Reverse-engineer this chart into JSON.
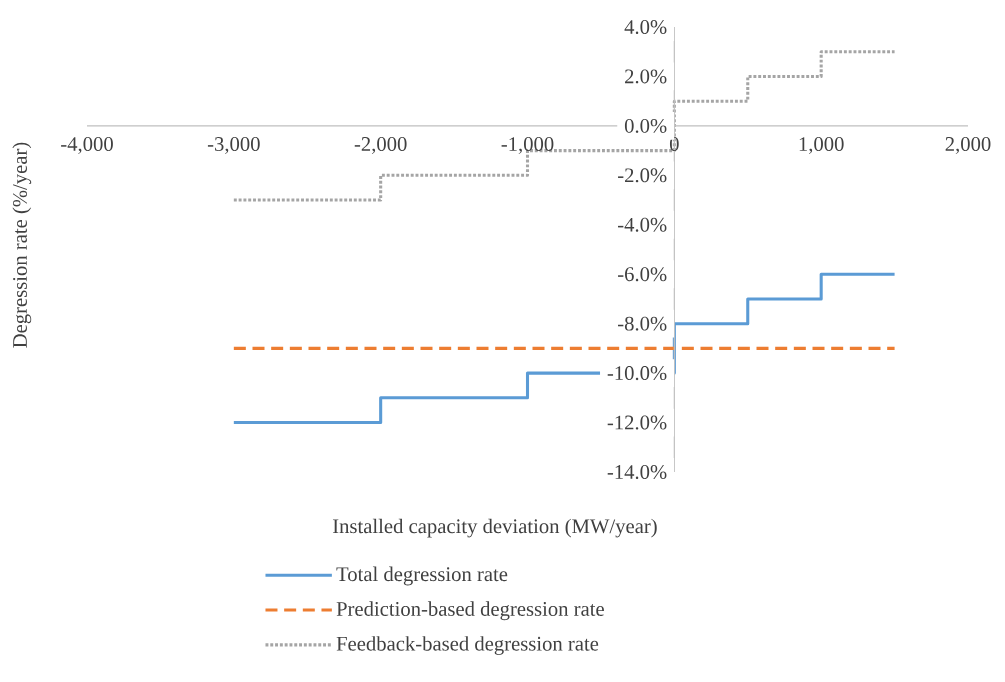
{
  "chart_data": {
    "type": "step",
    "xlabel": "Installed capacity deviation (MW/year)",
    "ylabel": "Degression rate (%/year)",
    "xlim": [
      -4000,
      2000
    ],
    "ylim": [
      -14,
      4
    ],
    "xticks": [
      {
        "value": -4000,
        "label": "-4,000"
      },
      {
        "value": -3000,
        "label": "-3,000"
      },
      {
        "value": -2000,
        "label": "-2,000"
      },
      {
        "value": -1000,
        "label": "-1,000"
      },
      {
        "value": 0,
        "label": "0"
      },
      {
        "value": 1000,
        "label": "1,000"
      },
      {
        "value": 2000,
        "label": "2,000"
      }
    ],
    "yticks": [
      {
        "value": -14,
        "label": "-14.0%"
      },
      {
        "value": -12,
        "label": "-12.0%"
      },
      {
        "value": -10,
        "label": "-10.0%"
      },
      {
        "value": -8,
        "label": "-8.0%"
      },
      {
        "value": -6,
        "label": "-6.0%"
      },
      {
        "value": -4,
        "label": "-4.0%"
      },
      {
        "value": -2,
        "label": "-2.0%"
      },
      {
        "value": 0,
        "label": "0.0%"
      },
      {
        "value": 2,
        "label": "2.0%"
      },
      {
        "value": 4,
        "label": "4.0%"
      }
    ],
    "legend": "bottom",
    "series": [
      {
        "name": "Total degression rate",
        "color": "#5b9bd5",
        "line_style": "solid",
        "x": [
          -3000,
          -2000,
          -1000,
          0,
          500,
          1000,
          1500
        ],
        "values": [
          -12,
          -11,
          -10,
          -8,
          -7,
          -6,
          -6
        ]
      },
      {
        "name": "Prediction-based degression rate",
        "type": "line",
        "color": "#ed7d31",
        "line_style": "dashed",
        "x": [
          -3000,
          1500
        ],
        "values": [
          -9,
          -9
        ]
      },
      {
        "name": "Feedback-based degression rate",
        "color": "#a5a5a5",
        "line_style": "dotted",
        "x": [
          -3000,
          -2000,
          -1000,
          0,
          500,
          1000,
          1500
        ],
        "values": [
          -3,
          -2,
          -1,
          1,
          2,
          3,
          3
        ]
      }
    ]
  }
}
